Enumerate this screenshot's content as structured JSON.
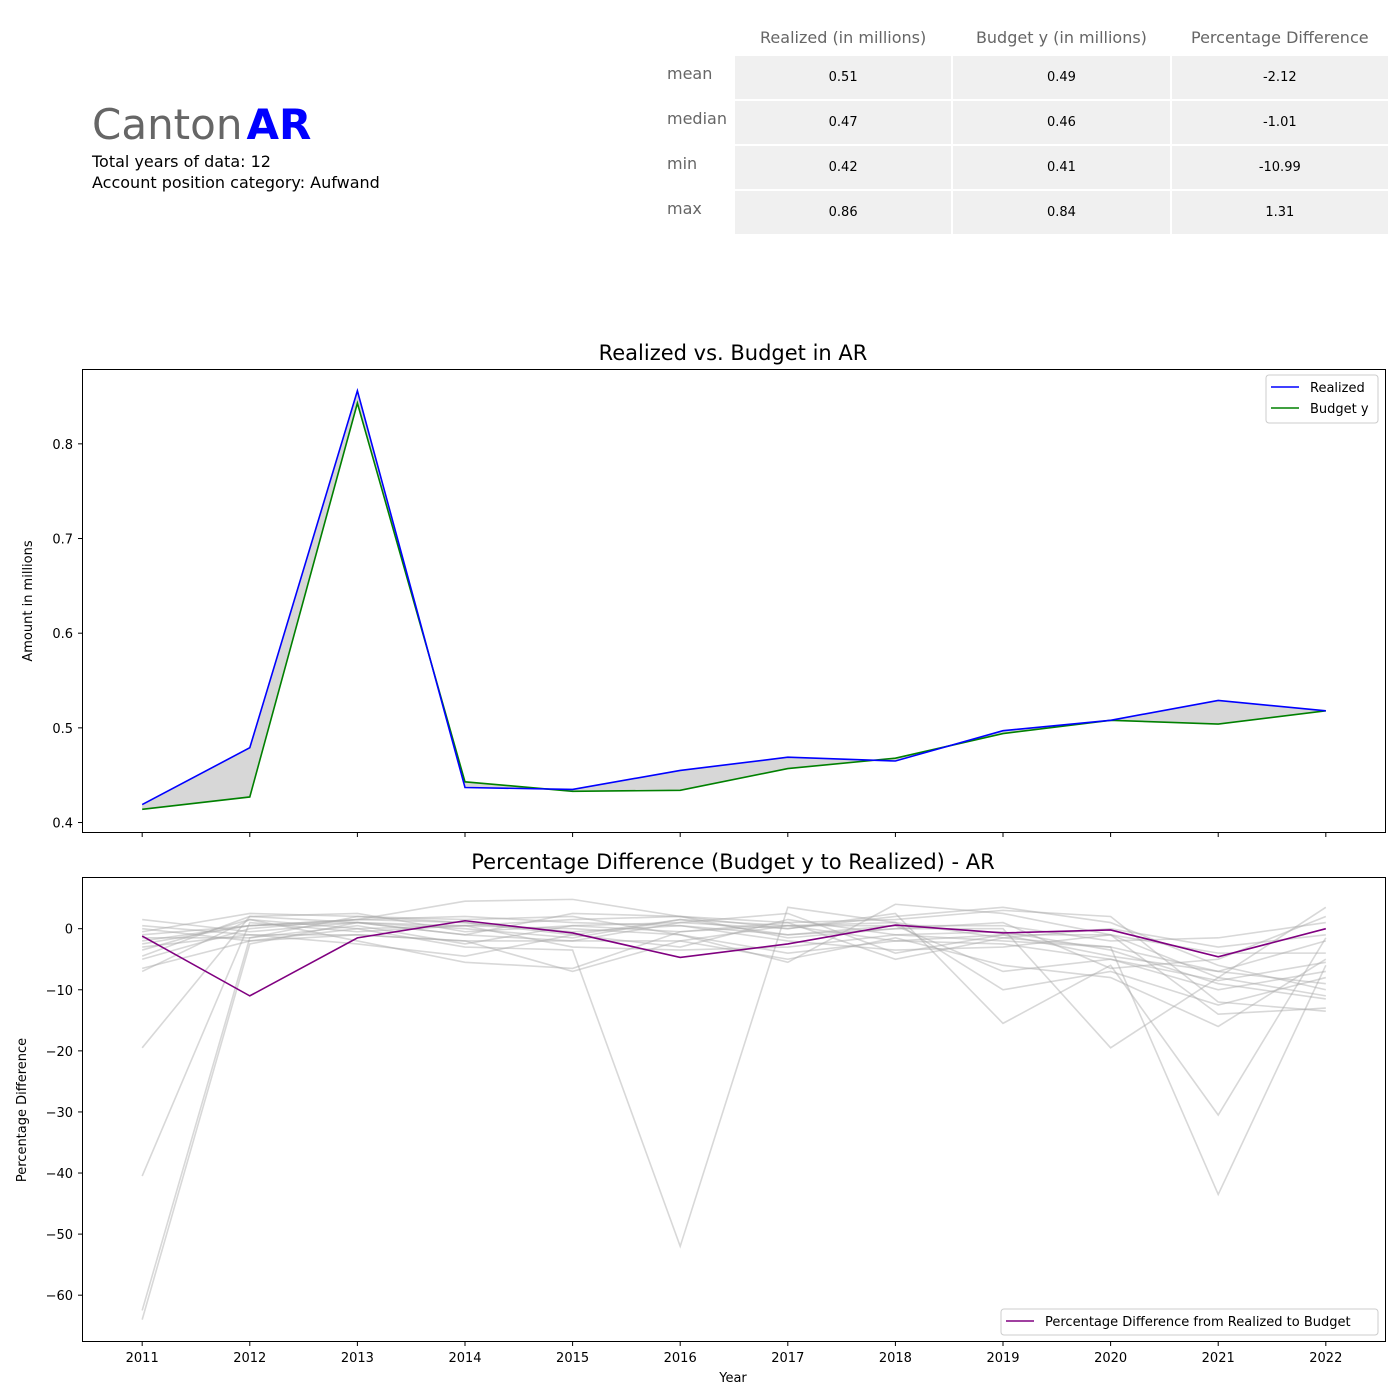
{
  "header": {
    "canton_word": "Canton",
    "canton_code": "AR",
    "years_line": "Total years of data: 12",
    "category_line": "Account position category: Aufwand"
  },
  "stats_table": {
    "columns": [
      "Realized (in millions)",
      "Budget y (in millions)",
      "Percentage Difference"
    ],
    "rows": [
      {
        "label": "mean",
        "values": [
          "0.51",
          "0.49",
          "-2.12"
        ]
      },
      {
        "label": "median",
        "values": [
          "0.47",
          "0.46",
          "-1.01"
        ]
      },
      {
        "label": "min",
        "values": [
          "0.42",
          "0.41",
          "-10.99"
        ]
      },
      {
        "label": "max",
        "values": [
          "0.86",
          "0.84",
          "1.31"
        ]
      }
    ]
  },
  "colors": {
    "realized": "#0000ff",
    "budget": "#008000",
    "fill": "#d3d3d3",
    "pct": "#800080",
    "background_lines": "#a9a9a9"
  },
  "chart_data": [
    {
      "type": "line",
      "title": "Realized vs. Budget in AR",
      "xlabel": "",
      "ylabel": "Amount in millions",
      "x": [
        2011,
        2012,
        2013,
        2014,
        2015,
        2016,
        2017,
        2018,
        2019,
        2020,
        2021,
        2022
      ],
      "ylim": [
        0.39,
        0.878
      ],
      "yticks": [
        "0.4",
        "0.5",
        "0.6",
        "0.7",
        "0.8"
      ],
      "legend_position": "upper right",
      "grid": false,
      "series": [
        {
          "name": "Realized",
          "values": [
            0.419,
            0.479,
            0.856,
            0.437,
            0.435,
            0.455,
            0.469,
            0.465,
            0.497,
            0.508,
            0.529,
            0.518
          ]
        },
        {
          "name": "Budget y",
          "values": [
            0.414,
            0.427,
            0.843,
            0.443,
            0.433,
            0.434,
            0.457,
            0.468,
            0.494,
            0.508,
            0.504,
            0.518
          ]
        }
      ],
      "fill_between": [
        "Realized",
        "Budget y"
      ]
    },
    {
      "type": "line",
      "title": "Percentage Difference (Budget y to Realized) - AR",
      "xlabel": "Year",
      "ylabel": "Percentage Difference",
      "x": [
        2011,
        2012,
        2013,
        2014,
        2015,
        2016,
        2017,
        2018,
        2019,
        2020,
        2021,
        2022
      ],
      "xticks": [
        "2011",
        "2012",
        "2013",
        "2014",
        "2015",
        "2016",
        "2017",
        "2018",
        "2019",
        "2020",
        "2021",
        "2022"
      ],
      "ylim": [
        -67.5,
        8.3
      ],
      "yticks": [
        "0",
        "−10",
        "−20",
        "−30",
        "−40",
        "−50",
        "−60"
      ],
      "legend_position": "lower right",
      "grid": false,
      "series": [
        {
          "name": "Percentage Difference from Realized to Budget",
          "values": [
            -1.2,
            -11.0,
            -1.5,
            1.3,
            -0.7,
            -4.7,
            -2.5,
            0.6,
            -0.7,
            -0.2,
            -4.6,
            0.0
          ]
        }
      ],
      "background_series": [
        [
          1.5,
          -0.5,
          1.0,
          0.5,
          1.5,
          2.0,
          0.0,
          2.0,
          3.5,
          1.0,
          -6.0,
          -10.0
        ],
        [
          -0.5,
          2.5,
          2.0,
          1.5,
          2.0,
          -1.0,
          -5.5,
          4.0,
          2.5,
          -1.0,
          -8.0,
          -11.0
        ],
        [
          -2.0,
          0.5,
          1.5,
          4.5,
          4.8,
          2.0,
          1.0,
          1.5,
          3.0,
          2.0,
          -12.0,
          -13.5
        ],
        [
          -3.5,
          1.5,
          0.0,
          -3.0,
          -3.5,
          -52.0,
          3.5,
          1.0,
          -1.5,
          -3.0,
          -43.5,
          -6.0
        ],
        [
          -19.5,
          2.0,
          1.0,
          -1.0,
          -2.0,
          1.0,
          0.0,
          2.5,
          -15.5,
          -6.0,
          -30.5,
          -1.5
        ],
        [
          -40.5,
          1.0,
          -0.5,
          0.5,
          0.0,
          -1.0,
          -4.0,
          -2.0,
          -1.0,
          -4.5,
          -7.0,
          -9.0
        ],
        [
          -62.5,
          -1.5,
          2.0,
          1.0,
          -0.5,
          0.5,
          -1.0,
          0.0,
          0.0,
          -19.5,
          -8.0,
          3.5
        ],
        [
          -64.0,
          -2.5,
          1.0,
          0.0,
          -1.5,
          1.5,
          0.5,
          1.0,
          -10.0,
          -7.0,
          -12.5,
          -8.0
        ],
        [
          -6.5,
          -2.0,
          -1.0,
          -2.0,
          -7.0,
          -2.0,
          -5.0,
          -1.5,
          -6.0,
          -8.0,
          -16.0,
          -5.0
        ],
        [
          -5.0,
          0.0,
          1.5,
          2.0,
          1.0,
          0.5,
          -2.0,
          -3.5,
          -3.0,
          -1.0,
          -14.0,
          -13.0
        ],
        [
          -7.0,
          1.5,
          -2.0,
          -5.5,
          -6.5,
          -0.5,
          0.5,
          0.5,
          -7.0,
          -5.0,
          -10.0,
          -7.0
        ],
        [
          0.5,
          -1.0,
          -2.5,
          -4.5,
          -1.0,
          -3.0,
          1.5,
          -1.0,
          -2.0,
          -3.0,
          -7.0,
          -2.0
        ],
        [
          -1.5,
          -1.5,
          0.5,
          -2.5,
          0.5,
          1.0,
          2.5,
          -4.0,
          -1.0,
          -1.0,
          -4.0,
          -4.0
        ],
        [
          -2.5,
          0.5,
          1.0,
          -1.0,
          2.5,
          2.0,
          -1.5,
          0.0,
          1.0,
          -6.5,
          -5.0,
          2.0
        ],
        [
          0.0,
          -2.0,
          0.0,
          0.5,
          -3.0,
          -3.5,
          -3.0,
          -1.0,
          -0.5,
          -3.5,
          -9.0,
          -11.5
        ],
        [
          -4.5,
          2.0,
          2.5,
          -0.5,
          0.5,
          -0.5,
          1.0,
          -5.0,
          -1.5,
          0.0,
          -3.0,
          -1.0
        ],
        [
          -1.0,
          0.5,
          1.5,
          1.0,
          -1.0,
          1.5,
          -1.0,
          0.5,
          0.5,
          -2.0,
          -1.5,
          1.0
        ],
        [
          -3.0,
          -1.0,
          -1.0,
          -2.0,
          -2.0,
          -2.0,
          0.5,
          -2.0,
          -2.5,
          -5.0,
          -8.5,
          -5.5
        ]
      ]
    }
  ]
}
